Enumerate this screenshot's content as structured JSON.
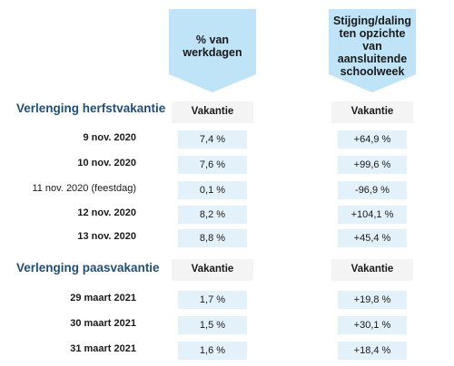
{
  "columns": [
    {
      "header": "% van\nwerkdagen"
    },
    {
      "header": "Stijging/daling\nten opzichte van\naansluitende\nschoolweek"
    }
  ],
  "colors": {
    "title": "#1f4e79",
    "header_fill": "#bfe3f7",
    "cell_fill": "#e3f1fb"
  },
  "chart_data": {
    "type": "table",
    "column_headers": [
      "% van werkdagen",
      "Stijging/daling ten opzichte van aansluitende schoolweek"
    ],
    "sections": [
      {
        "title": "Verlenging herfstvakantie",
        "subheaders": [
          "Vakantie",
          "Vakantie"
        ],
        "rows": [
          {
            "label": "9 nov. 2020",
            "bold": true,
            "pct": "7,4 %",
            "change": "+64,9 %"
          },
          {
            "label": "10 nov. 2020",
            "bold": true,
            "pct": "7,6 %",
            "change": "+99,6 %"
          },
          {
            "label": "11 nov. 2020 (feestdag)",
            "bold": false,
            "pct": "0,1 %",
            "change": "-96,9 %"
          },
          {
            "label": "12 nov. 2020",
            "bold": true,
            "pct": "8,2 %",
            "change": "+104,1 %"
          },
          {
            "label": "13 nov. 2020",
            "bold": true,
            "pct": "8,8 %",
            "change": "+45,4 %"
          }
        ]
      },
      {
        "title": "Verlenging paasvakantie",
        "subheaders": [
          "Vakantie",
          "Vakantie"
        ],
        "rows": [
          {
            "label": "29 maart 2021",
            "bold": true,
            "pct": "1,7 %",
            "change": "+19,8 %"
          },
          {
            "label": "30 maart 2021",
            "bold": true,
            "pct": "1,5 %",
            "change": "+30,1 %"
          },
          {
            "label": "31 maart 2021",
            "bold": true,
            "pct": "1,6 %",
            "change": "+18,4 %"
          }
        ]
      }
    ]
  }
}
